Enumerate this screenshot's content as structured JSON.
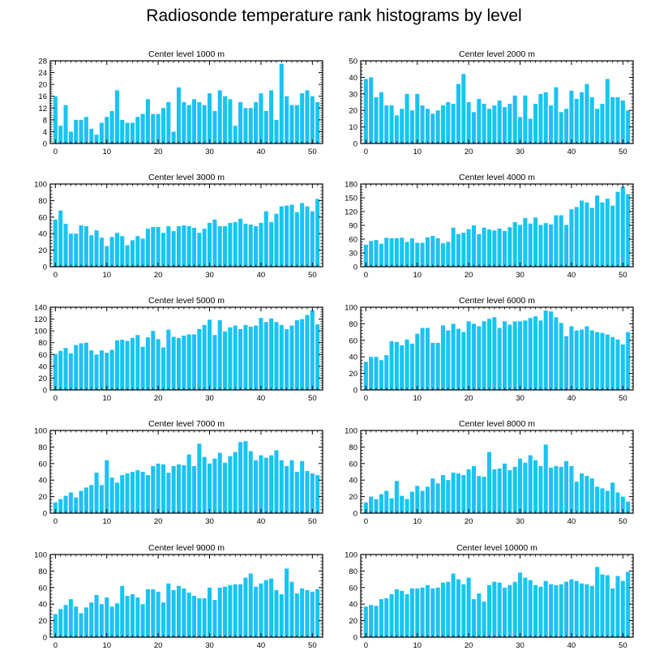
{
  "title": "Radiosonde temperature rank histograms by level",
  "bar_color": "#1ac3f2",
  "chart_data": [
    {
      "type": "bar",
      "title": "Center level 1000 m",
      "xlim": [
        -1,
        52
      ],
      "ylim": [
        0,
        28
      ],
      "xticks": [
        0,
        10,
        20,
        30,
        40,
        50
      ],
      "yticks": [
        0,
        4,
        8,
        12,
        16,
        20,
        24,
        28
      ],
      "x": [
        0,
        1,
        2,
        3,
        4,
        5,
        6,
        7,
        8,
        9,
        10,
        11,
        12,
        13,
        14,
        15,
        16,
        17,
        18,
        19,
        20,
        21,
        22,
        23,
        24,
        25,
        26,
        27,
        28,
        29,
        30,
        31,
        32,
        33,
        34,
        35,
        36,
        37,
        38,
        39,
        40,
        41,
        42,
        43,
        44,
        45,
        46,
        47,
        48,
        49,
        50,
        51
      ],
      "values": [
        16,
        6,
        13,
        4,
        8,
        8,
        9,
        5,
        3,
        7,
        9,
        11,
        18,
        8,
        7,
        7,
        9,
        10,
        15,
        10,
        10,
        12,
        14,
        4,
        19,
        14,
        13,
        15,
        14,
        13,
        17,
        11,
        18,
        16,
        15,
        6,
        14,
        12,
        12,
        14,
        17,
        11,
        18,
        8,
        27,
        16,
        13,
        13,
        17,
        18,
        16,
        14
      ]
    },
    {
      "type": "bar",
      "title": "Center level 2000 m",
      "xlim": [
        -1,
        52
      ],
      "ylim": [
        0,
        50
      ],
      "xticks": [
        0,
        10,
        20,
        30,
        40,
        50
      ],
      "yticks": [
        0,
        10,
        20,
        30,
        40,
        50
      ],
      "x": [
        0,
        1,
        2,
        3,
        4,
        5,
        6,
        7,
        8,
        9,
        10,
        11,
        12,
        13,
        14,
        15,
        16,
        17,
        18,
        19,
        20,
        21,
        22,
        23,
        24,
        25,
        26,
        27,
        28,
        29,
        30,
        31,
        32,
        33,
        34,
        35,
        36,
        37,
        38,
        39,
        40,
        41,
        42,
        43,
        44,
        45,
        46,
        47,
        48,
        49,
        50,
        51
      ],
      "values": [
        39,
        40,
        28,
        31,
        23,
        23,
        17,
        21,
        30,
        20,
        30,
        23,
        21,
        18,
        20,
        23,
        25,
        24,
        36,
        42,
        25,
        19,
        27,
        24,
        21,
        23,
        26,
        22,
        24,
        29,
        16,
        29,
        15,
        24,
        30,
        31,
        23,
        34,
        19,
        21,
        32,
        27,
        31,
        36,
        28,
        21,
        24,
        39,
        28,
        28,
        26,
        20
      ]
    },
    {
      "type": "bar",
      "title": "Center level 3000 m",
      "xlim": [
        -1,
        52
      ],
      "ylim": [
        0,
        100
      ],
      "xticks": [
        0,
        10,
        20,
        30,
        40,
        50
      ],
      "yticks": [
        0,
        20,
        40,
        60,
        80,
        100
      ],
      "x": [
        0,
        1,
        2,
        3,
        4,
        5,
        6,
        7,
        8,
        9,
        10,
        11,
        12,
        13,
        14,
        15,
        16,
        17,
        18,
        19,
        20,
        21,
        22,
        23,
        24,
        25,
        26,
        27,
        28,
        29,
        30,
        31,
        32,
        33,
        34,
        35,
        36,
        37,
        38,
        39,
        40,
        41,
        42,
        43,
        44,
        45,
        46,
        47,
        48,
        49,
        50,
        51
      ],
      "values": [
        57,
        68,
        52,
        40,
        40,
        50,
        49,
        38,
        44,
        35,
        25,
        36,
        41,
        37,
        26,
        32,
        37,
        34,
        46,
        48,
        48,
        41,
        49,
        43,
        49,
        50,
        49,
        47,
        41,
        46,
        53,
        57,
        49,
        49,
        53,
        54,
        58,
        52,
        51,
        49,
        53,
        67,
        54,
        64,
        73,
        74,
        75,
        66,
        77,
        73,
        67,
        82
      ]
    },
    {
      "type": "bar",
      "title": "Center level 4000 m",
      "xlim": [
        -1,
        52
      ],
      "ylim": [
        0,
        180
      ],
      "xticks": [
        0,
        10,
        20,
        30,
        40,
        50
      ],
      "yticks": [
        0,
        30,
        60,
        90,
        120,
        150,
        180
      ],
      "x": [
        0,
        1,
        2,
        3,
        4,
        5,
        6,
        7,
        8,
        9,
        10,
        11,
        12,
        13,
        14,
        15,
        16,
        17,
        18,
        19,
        20,
        21,
        22,
        23,
        24,
        25,
        26,
        27,
        28,
        29,
        30,
        31,
        32,
        33,
        34,
        35,
        36,
        37,
        38,
        39,
        40,
        41,
        42,
        43,
        44,
        45,
        46,
        47,
        48,
        49,
        50,
        51
      ],
      "values": [
        48,
        56,
        58,
        50,
        63,
        62,
        62,
        63,
        54,
        62,
        52,
        52,
        64,
        67,
        62,
        51,
        54,
        85,
        71,
        74,
        82,
        90,
        71,
        85,
        81,
        79,
        83,
        78,
        86,
        97,
        91,
        106,
        94,
        107,
        91,
        95,
        92,
        112,
        112,
        91,
        125,
        130,
        144,
        140,
        128,
        155,
        140,
        148,
        133,
        163,
        174,
        158
      ]
    },
    {
      "type": "bar",
      "title": "Center level 5000 m",
      "xlim": [
        -1,
        52
      ],
      "ylim": [
        0,
        140
      ],
      "xticks": [
        0,
        10,
        20,
        30,
        40,
        50
      ],
      "yticks": [
        0,
        20,
        40,
        60,
        80,
        100,
        120,
        140
      ],
      "x": [
        0,
        1,
        2,
        3,
        4,
        5,
        6,
        7,
        8,
        9,
        10,
        11,
        12,
        13,
        14,
        15,
        16,
        17,
        18,
        19,
        20,
        21,
        22,
        23,
        24,
        25,
        26,
        27,
        28,
        29,
        30,
        31,
        32,
        33,
        34,
        35,
        36,
        37,
        38,
        39,
        40,
        41,
        42,
        43,
        44,
        45,
        46,
        47,
        48,
        49,
        50,
        51
      ],
      "values": [
        61,
        66,
        71,
        62,
        76,
        79,
        80,
        67,
        60,
        67,
        63,
        68,
        84,
        85,
        83,
        88,
        93,
        73,
        89,
        100,
        86,
        72,
        102,
        90,
        88,
        92,
        94,
        94,
        103,
        110,
        119,
        93,
        118,
        99,
        106,
        109,
        103,
        110,
        107,
        109,
        122,
        115,
        121,
        115,
        110,
        103,
        109,
        118,
        120,
        127,
        135,
        111
      ]
    },
    {
      "type": "bar",
      "title": "Center level 6000 m",
      "xlim": [
        -1,
        52
      ],
      "ylim": [
        0,
        100
      ],
      "xticks": [
        0,
        10,
        20,
        30,
        40,
        50
      ],
      "yticks": [
        0,
        20,
        40,
        60,
        80,
        100
      ],
      "x": [
        0,
        1,
        2,
        3,
        4,
        5,
        6,
        7,
        8,
        9,
        10,
        11,
        12,
        13,
        14,
        15,
        16,
        17,
        18,
        19,
        20,
        21,
        22,
        23,
        24,
        25,
        26,
        27,
        28,
        29,
        30,
        31,
        32,
        33,
        34,
        35,
        36,
        37,
        38,
        39,
        40,
        41,
        42,
        43,
        44,
        45,
        46,
        47,
        48,
        49,
        50,
        51
      ],
      "values": [
        34,
        40,
        40,
        36,
        42,
        59,
        58,
        54,
        61,
        56,
        68,
        75,
        75,
        57,
        57,
        78,
        72,
        80,
        74,
        70,
        83,
        80,
        77,
        83,
        86,
        88,
        75,
        83,
        79,
        83,
        83,
        84,
        87,
        89,
        84,
        96,
        95,
        88,
        81,
        65,
        77,
        72,
        73,
        77,
        72,
        70,
        69,
        67,
        64,
        61,
        55,
        70
      ]
    },
    {
      "type": "bar",
      "title": "Center level 7000 m",
      "xlim": [
        -1,
        52
      ],
      "ylim": [
        0,
        100
      ],
      "xticks": [
        0,
        10,
        20,
        30,
        40,
        50
      ],
      "yticks": [
        0,
        20,
        40,
        60,
        80,
        100
      ],
      "x": [
        0,
        1,
        2,
        3,
        4,
        5,
        6,
        7,
        8,
        9,
        10,
        11,
        12,
        13,
        14,
        15,
        16,
        17,
        18,
        19,
        20,
        21,
        22,
        23,
        24,
        25,
        26,
        27,
        28,
        29,
        30,
        31,
        32,
        33,
        34,
        35,
        36,
        37,
        38,
        39,
        40,
        41,
        42,
        43,
        44,
        45,
        46,
        47,
        48,
        49,
        50,
        51
      ],
      "values": [
        13,
        17,
        21,
        25,
        19,
        27,
        31,
        34,
        49,
        34,
        64,
        43,
        37,
        46,
        48,
        50,
        52,
        50,
        46,
        57,
        60,
        59,
        49,
        57,
        59,
        58,
        71,
        57,
        84,
        68,
        60,
        66,
        73,
        61,
        69,
        74,
        86,
        87,
        75,
        64,
        70,
        67,
        70,
        76,
        64,
        57,
        64,
        50,
        63,
        51,
        48,
        46
      ]
    },
    {
      "type": "bar",
      "title": "Center level 8000 m",
      "xlim": [
        -1,
        52
      ],
      "ylim": [
        0,
        100
      ],
      "xticks": [
        0,
        10,
        20,
        30,
        40,
        50
      ],
      "yticks": [
        0,
        20,
        40,
        60,
        80,
        100
      ],
      "x": [
        0,
        1,
        2,
        3,
        4,
        5,
        6,
        7,
        8,
        9,
        10,
        11,
        12,
        13,
        14,
        15,
        16,
        17,
        18,
        19,
        20,
        21,
        22,
        23,
        24,
        25,
        26,
        27,
        28,
        29,
        30,
        31,
        32,
        33,
        34,
        35,
        36,
        37,
        38,
        39,
        40,
        41,
        42,
        43,
        44,
        45,
        46,
        47,
        48,
        49,
        50,
        51
      ],
      "values": [
        13,
        20,
        17,
        23,
        27,
        18,
        39,
        21,
        17,
        26,
        33,
        27,
        32,
        42,
        36,
        46,
        40,
        49,
        48,
        46,
        53,
        57,
        45,
        44,
        74,
        53,
        54,
        60,
        52,
        56,
        66,
        61,
        70,
        64,
        57,
        83,
        55,
        57,
        56,
        63,
        57,
        38,
        48,
        45,
        42,
        32,
        30,
        27,
        37,
        25,
        20,
        14
      ]
    },
    {
      "type": "bar",
      "title": "Center level 9000 m",
      "xlim": [
        -1,
        52
      ],
      "ylim": [
        0,
        100
      ],
      "xticks": [
        0,
        10,
        20,
        30,
        40,
        50
      ],
      "yticks": [
        0,
        20,
        40,
        60,
        80,
        100
      ],
      "x": [
        0,
        1,
        2,
        3,
        4,
        5,
        6,
        7,
        8,
        9,
        10,
        11,
        12,
        13,
        14,
        15,
        16,
        17,
        18,
        19,
        20,
        21,
        22,
        23,
        24,
        25,
        26,
        27,
        28,
        29,
        30,
        31,
        32,
        33,
        34,
        35,
        36,
        37,
        38,
        39,
        40,
        41,
        42,
        43,
        44,
        45,
        46,
        47,
        48,
        49,
        50,
        51
      ],
      "values": [
        28,
        34,
        39,
        46,
        37,
        29,
        36,
        42,
        51,
        40,
        48,
        37,
        41,
        62,
        50,
        52,
        48,
        40,
        58,
        58,
        55,
        42,
        65,
        57,
        62,
        59,
        54,
        50,
        47,
        47,
        60,
        45,
        60,
        61,
        63,
        64,
        64,
        72,
        77,
        61,
        65,
        69,
        71,
        57,
        52,
        83,
        67,
        53,
        59,
        57,
        55,
        58
      ]
    },
    {
      "type": "bar",
      "title": "Center level 10000 m",
      "xlim": [
        -1,
        52
      ],
      "ylim": [
        0,
        100
      ],
      "xticks": [
        0,
        10,
        20,
        30,
        40,
        50
      ],
      "yticks": [
        0,
        20,
        40,
        60,
        80,
        100
      ],
      "x": [
        0,
        1,
        2,
        3,
        4,
        5,
        6,
        7,
        8,
        9,
        10,
        11,
        12,
        13,
        14,
        15,
        16,
        17,
        18,
        19,
        20,
        21,
        22,
        23,
        24,
        25,
        26,
        27,
        28,
        29,
        30,
        31,
        32,
        33,
        34,
        35,
        36,
        37,
        38,
        39,
        40,
        41,
        42,
        43,
        44,
        45,
        46,
        47,
        48,
        49,
        50,
        51
      ],
      "values": [
        37,
        39,
        38,
        46,
        47,
        52,
        58,
        56,
        52,
        59,
        59,
        60,
        63,
        59,
        60,
        66,
        67,
        77,
        70,
        64,
        72,
        46,
        53,
        43,
        63,
        67,
        66,
        60,
        63,
        67,
        78,
        72,
        69,
        63,
        61,
        68,
        64,
        63,
        64,
        67,
        70,
        68,
        65,
        64,
        62,
        85,
        76,
        75,
        59,
        74,
        68,
        79
      ]
    }
  ]
}
